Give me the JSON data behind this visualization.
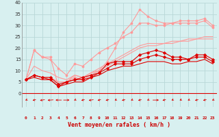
{
  "x": [
    0,
    1,
    2,
    3,
    4,
    5,
    6,
    7,
    8,
    9,
    10,
    11,
    12,
    13,
    14,
    15,
    16,
    17,
    18,
    19,
    20,
    21,
    22,
    23
  ],
  "line1_light": [
    6,
    19,
    16,
    16,
    3,
    5,
    7,
    6,
    8,
    10,
    14,
    20,
    27,
    31,
    37,
    34,
    32,
    31,
    31,
    32,
    32,
    32,
    33,
    30
  ],
  "line2_light": [
    6,
    19,
    16,
    15,
    11,
    8,
    13,
    12,
    15,
    18,
    20,
    22,
    25,
    27,
    31,
    31,
    30,
    30,
    31,
    31,
    31,
    31,
    32,
    29
  ],
  "line3_light": [
    6,
    12,
    10,
    9,
    7,
    6,
    8,
    7,
    9,
    11,
    13,
    15,
    17,
    19,
    21,
    22,
    22,
    22,
    23,
    23,
    24,
    24,
    25,
    25
  ],
  "line4_light": [
    6,
    8,
    7,
    7,
    5,
    5,
    8,
    7,
    9,
    10,
    12,
    14,
    16,
    18,
    20,
    21,
    21,
    22,
    22,
    23,
    23,
    24,
    24,
    24
  ],
  "line1_dark": [
    6,
    8,
    7,
    7,
    4,
    5,
    6,
    7,
    8,
    9,
    13,
    14,
    14,
    14,
    17,
    18,
    19,
    18,
    16,
    16,
    15,
    17,
    17,
    15
  ],
  "line2_dark": [
    6,
    8,
    7,
    6,
    3,
    5,
    6,
    6,
    7,
    9,
    11,
    13,
    13,
    13,
    15,
    16,
    17,
    16,
    15,
    15,
    15,
    16,
    16,
    14
  ],
  "line3_dark": [
    6,
    7,
    6,
    6,
    3,
    4,
    5,
    5,
    7,
    8,
    10,
    11,
    12,
    12,
    13,
    14,
    14,
    14,
    13,
    13,
    14,
    14,
    15,
    13
  ],
  "arrows_angle": [
    210,
    225,
    240,
    255,
    270,
    90,
    210,
    225,
    240,
    225,
    225,
    210,
    225,
    210,
    225,
    210,
    90,
    225,
    210,
    210,
    210,
    225,
    225,
    210
  ],
  "bg_color": "#d8f0f0",
  "grid_color": "#b8d8d8",
  "color_light": "#ff9999",
  "color_dark": "#dd0000",
  "color_arrow": "#dd0000",
  "xlabel": "Vent moyen/en rafales ( km/h )",
  "ylim": [
    -6,
    40
  ],
  "xlim": [
    -0.5,
    23.5
  ],
  "yticks": [
    0,
    5,
    10,
    15,
    20,
    25,
    30,
    35,
    40
  ],
  "xticks": [
    0,
    1,
    2,
    3,
    4,
    5,
    6,
    7,
    8,
    9,
    10,
    11,
    12,
    13,
    14,
    15,
    16,
    17,
    18,
    19,
    20,
    21,
    22,
    23
  ]
}
